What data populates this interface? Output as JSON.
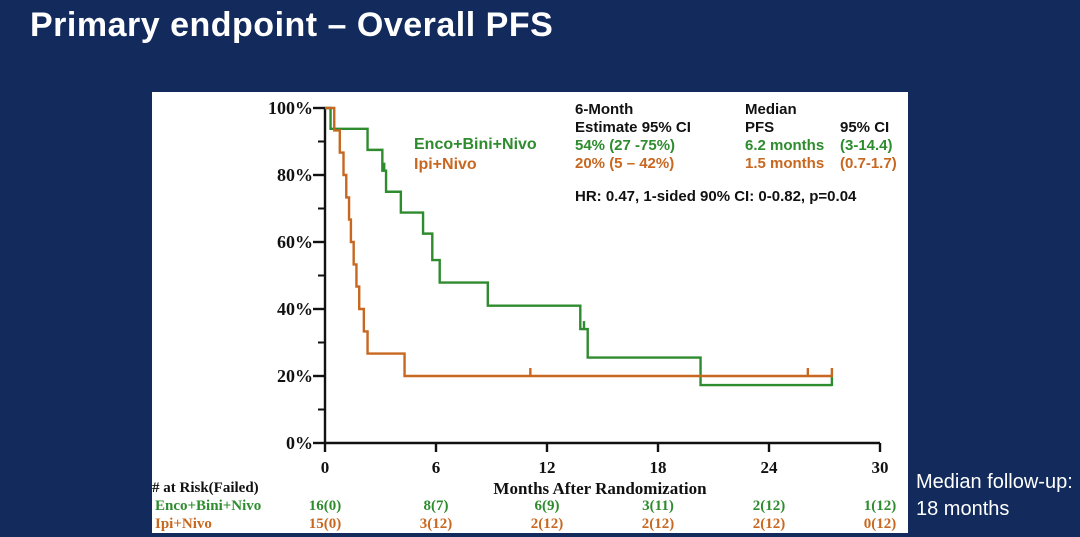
{
  "slide": {
    "title": "Primary endpoint – Overall PFS",
    "footnote_line1": "Median follow-up:",
    "footnote_line2": "18 months"
  },
  "colors": {
    "background": "#122b5c",
    "panel": "#ffffff",
    "green": "#2e8b2e",
    "orange": "#c8671f",
    "axis": "#111111"
  },
  "legend": [
    {
      "label": "Enco+Bini+Nivo",
      "color": "green"
    },
    {
      "label": "Ipi+Nivo",
      "color": "orange"
    }
  ],
  "stats": {
    "col1_header_line1": "6-Month",
    "col1_header_line2": "Estimate 95% CI",
    "col2_header_line1": "Median",
    "col2_header_line2": "PFS",
    "col3_header_line2": "95% CI",
    "rows": [
      {
        "estimate": "54% (27 -75%)",
        "median": "6.2 months",
        "ci": "(3-14.4)",
        "color": "green"
      },
      {
        "estimate": "20% (5 – 42%)",
        "median": "1.5 months",
        "ci": "(0.7-1.7)",
        "color": "orange"
      }
    ],
    "hr_line": "HR: 0.47, 1-sided 90% CI: 0-0.82, p=0.04"
  },
  "chart_data": {
    "type": "line",
    "subtype": "kaplan-meier-step",
    "title": "",
    "xlabel": "Months After Randomization",
    "ylabel": "",
    "xlim": [
      0,
      30
    ],
    "ylim": [
      0,
      100
    ],
    "x_ticks": [
      0,
      6,
      12,
      18,
      24,
      30
    ],
    "y_major_ticks": [
      0,
      20,
      40,
      60,
      80,
      100
    ],
    "y_minor_ticks": [
      10,
      30,
      50,
      70,
      90
    ],
    "y_tick_labels": [
      "0%",
      "20%",
      "40%",
      "60%",
      "80%",
      "100%"
    ],
    "grid": false,
    "legend_position": "inside-top-left",
    "series": [
      {
        "name": "Enco+Bini+Nivo",
        "color": "#2e8b2e",
        "steps": [
          [
            0,
            100
          ],
          [
            0.3,
            93.8
          ],
          [
            2.3,
            87.5
          ],
          [
            3.1,
            81.3
          ],
          [
            3.3,
            75
          ],
          [
            4.1,
            68.8
          ],
          [
            5.3,
            62.5
          ],
          [
            5.8,
            54.6
          ],
          [
            6.2,
            47.9
          ],
          [
            8.8,
            41
          ],
          [
            13.8,
            34
          ],
          [
            14.2,
            25.5
          ],
          [
            20.3,
            17.3
          ]
        ],
        "end_month": 27.4,
        "censor_ticks": [
          [
            3.2,
            81.3
          ],
          [
            14.0,
            34
          ],
          [
            27.4,
            17.3
          ]
        ]
      },
      {
        "name": "Ipi+Nivo",
        "color": "#c8671f",
        "steps": [
          [
            0,
            100
          ],
          [
            0.5,
            93.3
          ],
          [
            0.8,
            86.7
          ],
          [
            1.0,
            80
          ],
          [
            1.15,
            73.3
          ],
          [
            1.3,
            66.7
          ],
          [
            1.4,
            60
          ],
          [
            1.55,
            53.3
          ],
          [
            1.7,
            46.7
          ],
          [
            1.85,
            40
          ],
          [
            2.1,
            33.3
          ],
          [
            2.3,
            26.7
          ],
          [
            4.3,
            20
          ]
        ],
        "end_month": 27.4,
        "censor_ticks": [
          [
            11.1,
            20
          ],
          [
            26.1,
            20
          ],
          [
            27.4,
            20
          ]
        ]
      }
    ]
  },
  "risk_table": {
    "header": "# at Risk(Failed)",
    "rows": [
      {
        "label": "Enco+Bini+Nivo",
        "color": "green",
        "values": [
          "16(0)",
          "8(7)",
          "6(9)",
          "3(11)",
          "2(12)",
          "1(12)"
        ]
      },
      {
        "label": "Ipi+Nivo",
        "color": "orange",
        "values": [
          "15(0)",
          "3(12)",
          "2(12)",
          "2(12)",
          "2(12)",
          "0(12)"
        ]
      }
    ]
  }
}
